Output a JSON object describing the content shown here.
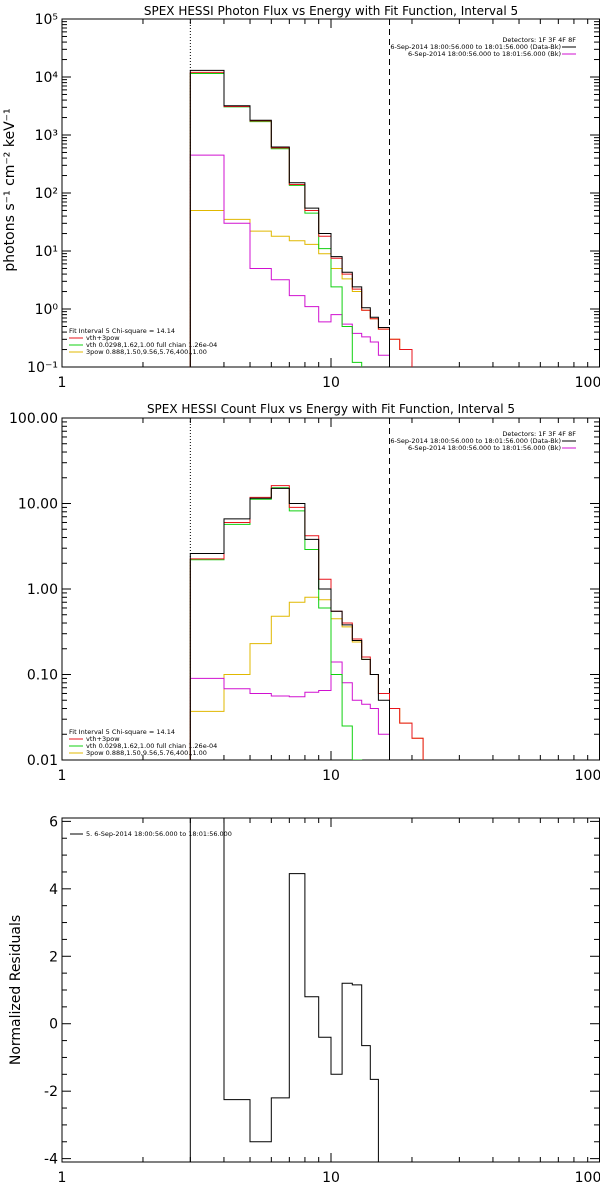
{
  "colors": {
    "data": "#000000",
    "total": "#e8141c",
    "vth": "#10d010",
    "spow": "#e0b800",
    "bkg": "#d010d0"
  },
  "chart_data": [
    {
      "type": "line",
      "scale": "log-log",
      "title": "SPEX HESSI Photon Flux vs Energy with Fit Function, Interval 5",
      "xlabel": "",
      "ylabel": "photons s⁻¹ cm⁻² keV⁻¹",
      "xlim": [
        1,
        100
      ],
      "ylim": [
        0.1,
        100000
      ],
      "xticks": [
        "1",
        "10",
        "100"
      ],
      "yticks": [
        "10⁻¹",
        "10⁰",
        "10¹",
        "10²",
        "10³",
        "10⁴",
        "10⁵"
      ],
      "grid": false,
      "fit_range_keV": [
        3,
        16.5
      ],
      "legend_top_right": [
        "Detectors: 1F 3F 4F 8F",
        "6-Sep-2014 18:00:56.000 to 18:01:56.000 (Data-Bk)",
        "6-Sep-2014 18:00:56.000 to 18:01:56.000 (Bk)"
      ],
      "legend_bottom_left": [
        "Fit Interval 5   Chi-square = 14.14",
        "vth+3pow",
        "vth 0.0298,1.62,1.00  full chian 1.26e-04",
        "3pow 0.888,1.50,9.56,5.76,400.,1.00"
      ],
      "bin_edges": [
        3,
        4,
        5,
        6,
        7,
        8,
        9,
        10,
        11,
        12,
        13,
        14,
        15,
        16.5,
        18,
        20
      ],
      "series": [
        {
          "key": "data",
          "values": [
            13000,
            3200,
            1800,
            620,
            150,
            55,
            20,
            8,
            4.3,
            2.4,
            1.05,
            0.72,
            0.48,
            null,
            null
          ]
        },
        {
          "key": "total",
          "values": [
            12000,
            3100,
            1750,
            600,
            140,
            50,
            18,
            7.5,
            4.0,
            2.2,
            0.95,
            0.68,
            0.45,
            0.3,
            0.2
          ]
        },
        {
          "key": "vth",
          "values": [
            11500,
            3050,
            1700,
            580,
            135,
            45,
            11,
            2.4,
            0.5,
            0.12,
            null,
            null,
            null,
            null,
            null
          ]
        },
        {
          "key": "spow",
          "values": [
            50,
            35,
            22,
            18,
            15,
            13,
            9,
            5,
            3.3,
            2.0,
            0.95,
            0.68,
            0.45,
            0.3,
            0.2
          ]
        },
        {
          "key": "bkg",
          "values": [
            450,
            30,
            5,
            3.2,
            1.7,
            1.1,
            0.6,
            0.8,
            0.55,
            0.38,
            0.33,
            0.27,
            0.16,
            null,
            null
          ]
        }
      ]
    },
    {
      "type": "line",
      "scale": "log-log",
      "title": "SPEX HESSI Count Flux vs Energy with Fit Function, Interval 5",
      "xlabel": "",
      "ylabel": "",
      "xlim": [
        1,
        100
      ],
      "ylim": [
        0.01,
        100
      ],
      "xticks": [
        "1",
        "10",
        "100"
      ],
      "yticks": [
        "0.01",
        "0.10",
        "1.00",
        "10.00",
        "100.00"
      ],
      "grid": false,
      "fit_range_keV": [
        3,
        16.5
      ],
      "legend_top_right": [
        "Detectors: 1F 3F 4F 8F",
        "6-Sep-2014 18:00:56.000 to 18:01:56.000 (Data-Bk)",
        "6-Sep-2014 18:00:56.000 to 18:01:56.000 (Bk)"
      ],
      "legend_bottom_left": [
        "Fit Interval 5   Chi-square = 14.14",
        "vth+3pow",
        "vth 0.0298,1.62,1.00  full chian 1.26e-04",
        "3pow 0.888,1.50,9.56,5.76,400.,1.00"
      ],
      "bin_edges": [
        3,
        4,
        5,
        6,
        7,
        8,
        9,
        10,
        11,
        12,
        13,
        14,
        15,
        16.5,
        18,
        20,
        22
      ],
      "series": [
        {
          "key": "data",
          "values": [
            2.6,
            6.6,
            11.5,
            15,
            10,
            3.8,
            1.0,
            0.55,
            0.38,
            0.25,
            0.15,
            0.1,
            0.05,
            null,
            null,
            null
          ]
        },
        {
          "key": "total",
          "values": [
            2.25,
            6.0,
            11.8,
            16.2,
            9.0,
            4.2,
            1.3,
            0.55,
            0.4,
            0.26,
            0.16,
            0.1,
            0.06,
            0.04,
            0.027,
            0.018
          ]
        },
        {
          "key": "vth",
          "values": [
            2.2,
            5.7,
            11.2,
            15.3,
            8.2,
            2.9,
            0.6,
            0.1,
            0.025,
            0.01,
            null,
            null,
            null,
            null,
            null,
            null
          ]
        },
        {
          "key": "spow",
          "values": [
            0.037,
            0.1,
            0.23,
            0.48,
            0.7,
            0.8,
            0.75,
            0.45,
            0.36,
            0.24,
            0.15,
            0.1,
            0.06,
            0.04,
            0.027,
            0.018
          ]
        },
        {
          "key": "bkg",
          "values": [
            0.09,
            0.068,
            0.06,
            0.056,
            0.055,
            0.062,
            0.065,
            0.14,
            0.08,
            0.05,
            0.045,
            0.04,
            0.02,
            null,
            null,
            null
          ]
        }
      ]
    },
    {
      "type": "line",
      "scale": "log-linear",
      "title": "",
      "xlabel": "",
      "ylabel": "Normalized Residuals",
      "xlim": [
        1,
        100
      ],
      "ylim": [
        -4.1,
        6.1
      ],
      "xticks": [
        "1",
        "10",
        "100"
      ],
      "yticks": [
        "-4",
        "-2",
        "0",
        "2",
        "4",
        "6"
      ],
      "grid": false,
      "legend_top_left": [
        "5. 6-Sep-2014 18:00:56.000 to 18:01:56.000"
      ],
      "bin_edges": [
        3,
        4,
        5,
        6,
        7,
        8,
        9,
        10,
        11,
        12,
        13,
        14,
        15,
        16.5
      ],
      "series": [
        {
          "key": "residuals",
          "values": [
            6.1,
            -2.25,
            -3.5,
            -2.2,
            4.45,
            0.8,
            -0.4,
            -1.5,
            1.2,
            1.15,
            -0.65,
            -1.65,
            -4.1
          ]
        }
      ]
    }
  ]
}
